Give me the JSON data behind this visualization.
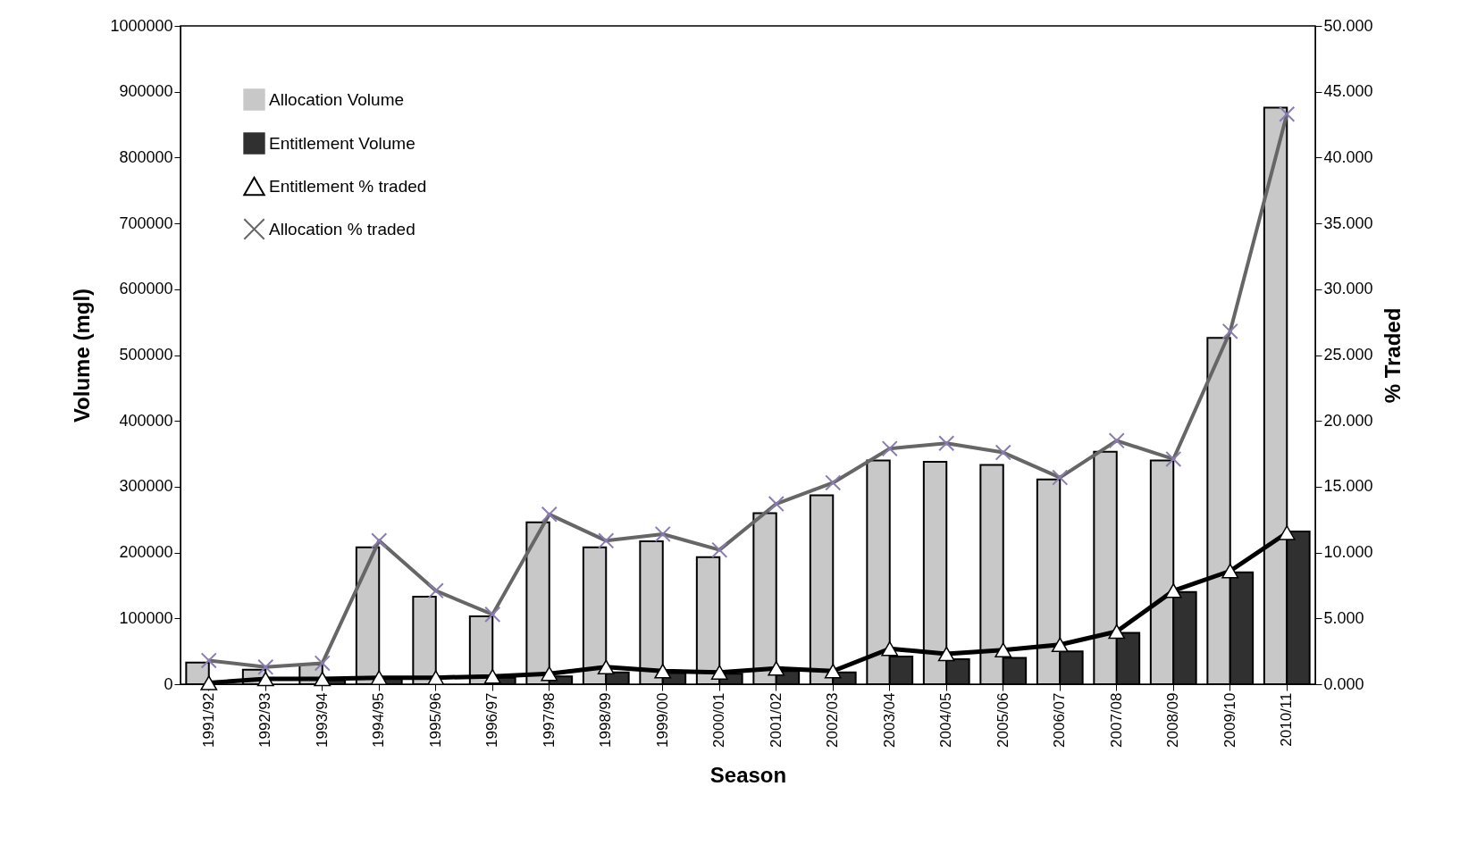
{
  "chart_data": {
    "type": "bar",
    "xlabel": "Season",
    "ylabel": "Volume (mgl)",
    "y2label": "% Traded",
    "categories": [
      "1991/92",
      "1992/93",
      "1993/94",
      "1994/95",
      "1995/96",
      "1996/97",
      "1997/98",
      "1998/99",
      "1999/00",
      "2000/01",
      "2001/02",
      "2002/03",
      "2003/04",
      "2004/05",
      "2005/06",
      "2006/07",
      "2007/08",
      "2008/09",
      "2009/10",
      "2010/11"
    ],
    "series": [
      {
        "name": "Allocation Volume",
        "color": "#c8c8c8",
        "values": [
          33000,
          22000,
          30000,
          208000,
          133000,
          103000,
          246000,
          208000,
          217000,
          193000,
          260000,
          287000,
          340000,
          338000,
          333000,
          311000,
          353000,
          340000,
          526000,
          876000
        ]
      },
      {
        "name": "Entitlement Volume",
        "color": "#303030",
        "values": [
          null,
          null,
          6000,
          8000,
          null,
          10000,
          12000,
          18000,
          17000,
          16000,
          20000,
          18000,
          42000,
          38000,
          40000,
          50000,
          78000,
          140000,
          170000,
          232000
        ]
      },
      {
        "name": "Entitlement % traded",
        "type": "line",
        "axis": "y2",
        "marker": "triangle",
        "color": "#000000",
        "values": [
          0.1,
          0.4,
          0.4,
          0.5,
          0.5,
          0.6,
          0.8,
          1.3,
          1.0,
          0.9,
          1.2,
          1.0,
          2.7,
          2.3,
          2.6,
          3.0,
          4.0,
          7.1,
          8.6,
          11.5
        ]
      },
      {
        "name": "Allocation % traded",
        "type": "line",
        "axis": "y2",
        "marker": "cross",
        "color": "#666666",
        "values": [
          1.8,
          1.3,
          1.6,
          10.9,
          7.1,
          5.3,
          12.9,
          10.9,
          11.4,
          10.2,
          13.7,
          15.3,
          17.9,
          18.3,
          17.6,
          15.7,
          18.5,
          17.1,
          26.8,
          43.3
        ]
      }
    ],
    "ylim": [
      0,
      1000000
    ],
    "yticks": [
      0,
      100000,
      200000,
      300000,
      400000,
      500000,
      600000,
      700000,
      800000,
      900000,
      1000000
    ],
    "y2lim": [
      0,
      50
    ],
    "y2ticks": [
      {
        "value": 0,
        "label": "0.000"
      },
      {
        "value": 5,
        "label": "5.000"
      },
      {
        "value": 10,
        "label": "10.000"
      },
      {
        "value": 15,
        "label": "15.000"
      },
      {
        "value": 20,
        "label": "20.000"
      },
      {
        "value": 25,
        "label": "25.000"
      },
      {
        "value": 30,
        "label": "30.000"
      },
      {
        "value": 35,
        "label": "35.000"
      },
      {
        "value": 40,
        "label": "40.000"
      },
      {
        "value": 45,
        "label": "45.000"
      },
      {
        "value": 50,
        "label": "50.000"
      }
    ],
    "legend": "top left",
    "grid": false
  }
}
